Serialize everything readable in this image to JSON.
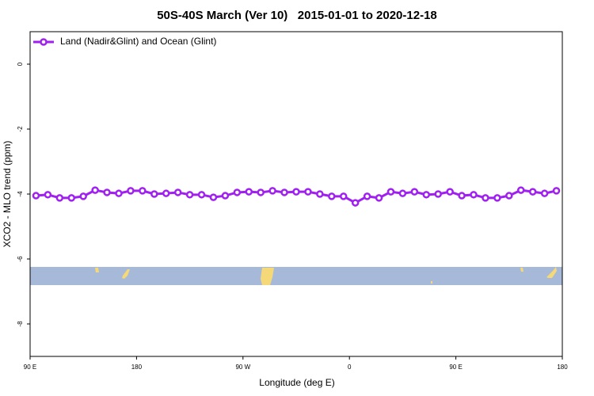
{
  "chart_data": {
    "type": "line",
    "title": "50S-40S March (Ver 10)   2015-01-01 to 2020-12-18",
    "x_label": "Longitude (deg E)",
    "y_label": "XCO2 - MLO trend (ppm)",
    "x": [
      95,
      105,
      115,
      125,
      135,
      145,
      155,
      165,
      175,
      185,
      195,
      205,
      215,
      225,
      235,
      245,
      255,
      265,
      275,
      285,
      295,
      305,
      315,
      325,
      335,
      345,
      355,
      365,
      375,
      385,
      395,
      405,
      415,
      425,
      435,
      445,
      455,
      465,
      475,
      485,
      495,
      505,
      515,
      525,
      535
    ],
    "series": [
      {
        "name": "Land (Nadir&Glint) and Ocean (Glint)",
        "color": "#a020f0",
        "values": [
          -4.05,
          -4.02,
          -4.12,
          -4.12,
          -4.07,
          -3.88,
          -3.95,
          -3.98,
          -3.9,
          -3.9,
          -4.0,
          -3.98,
          -3.95,
          -4.02,
          -4.02,
          -4.1,
          -4.05,
          -3.95,
          -3.93,
          -3.95,
          -3.9,
          -3.95,
          -3.93,
          -3.93,
          -4.0,
          -4.07,
          -4.07,
          -4.27,
          -4.07,
          -4.12,
          -3.93,
          -3.98,
          -3.93,
          -4.02,
          -4.0,
          -3.93,
          -4.05,
          -4.02,
          -4.12,
          -4.12,
          -4.05,
          -3.88,
          -3.93,
          -3.98,
          -3.9
        ]
      }
    ],
    "xlim": [
      90,
      540
    ],
    "xticks": [
      {
        "value": 90,
        "label": "90 E"
      },
      {
        "value": 180,
        "label": "180"
      },
      {
        "value": 270,
        "label": "90 W"
      },
      {
        "value": 360,
        "label": "0"
      },
      {
        "value": 450,
        "label": "90 E"
      },
      {
        "value": 540,
        "label": "180"
      }
    ],
    "ylim": [
      -9,
      1
    ],
    "yticks": [
      0,
      -2,
      -4,
      -6,
      -8
    ],
    "legend": "top-left"
  }
}
